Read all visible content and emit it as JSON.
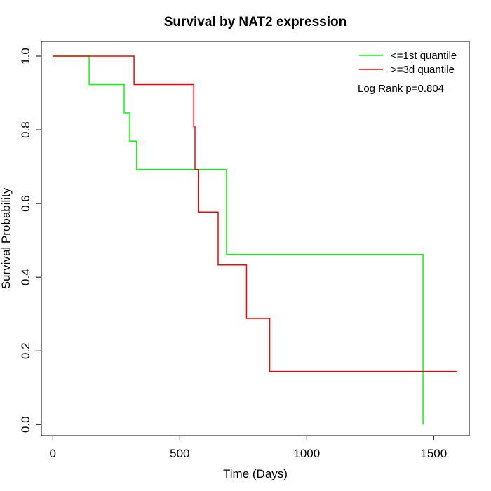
{
  "chart_data": {
    "type": "line",
    "step": true,
    "title": "Survival by NAT2 expression",
    "xlabel": "Time (Days)",
    "ylabel": "Survival Probability",
    "xlim": [
      -45,
      1640
    ],
    "ylim": [
      -0.03,
      1.04
    ],
    "xticks": [
      0,
      500,
      1000,
      1500
    ],
    "yticks": [
      0.0,
      0.2,
      0.4,
      0.6,
      0.8,
      1.0
    ],
    "xtick_labels": [
      "0",
      "500",
      "1000",
      "1500"
    ],
    "ytick_labels": [
      "0.0",
      "0.2",
      "0.4",
      "0.6",
      "0.8",
      "1.0"
    ],
    "grid": false,
    "legend_position": "top-right",
    "annotation": "Log Rank p=0.804",
    "series": [
      {
        "name": "<=1st quantile",
        "color": "#00ff00",
        "x": [
          0,
          143,
          143,
          281,
          281,
          303,
          303,
          330,
          330,
          684,
          684,
          1458,
          1458
        ],
        "y": [
          1.0,
          1.0,
          0.923,
          0.923,
          0.846,
          0.846,
          0.769,
          0.769,
          0.692,
          0.692,
          0.462,
          0.462,
          0.0
        ]
      },
      {
        "name": ">=3d quantile",
        "color": "#ff0000",
        "x": [
          0,
          320,
          320,
          555,
          555,
          560,
          560,
          573,
          573,
          651,
          651,
          763,
          763,
          854,
          854,
          1590
        ],
        "y": [
          1.0,
          1.0,
          0.923,
          0.923,
          0.808,
          0.808,
          0.692,
          0.692,
          0.577,
          0.577,
          0.433,
          0.433,
          0.288,
          0.288,
          0.144,
          0.144
        ]
      }
    ]
  }
}
